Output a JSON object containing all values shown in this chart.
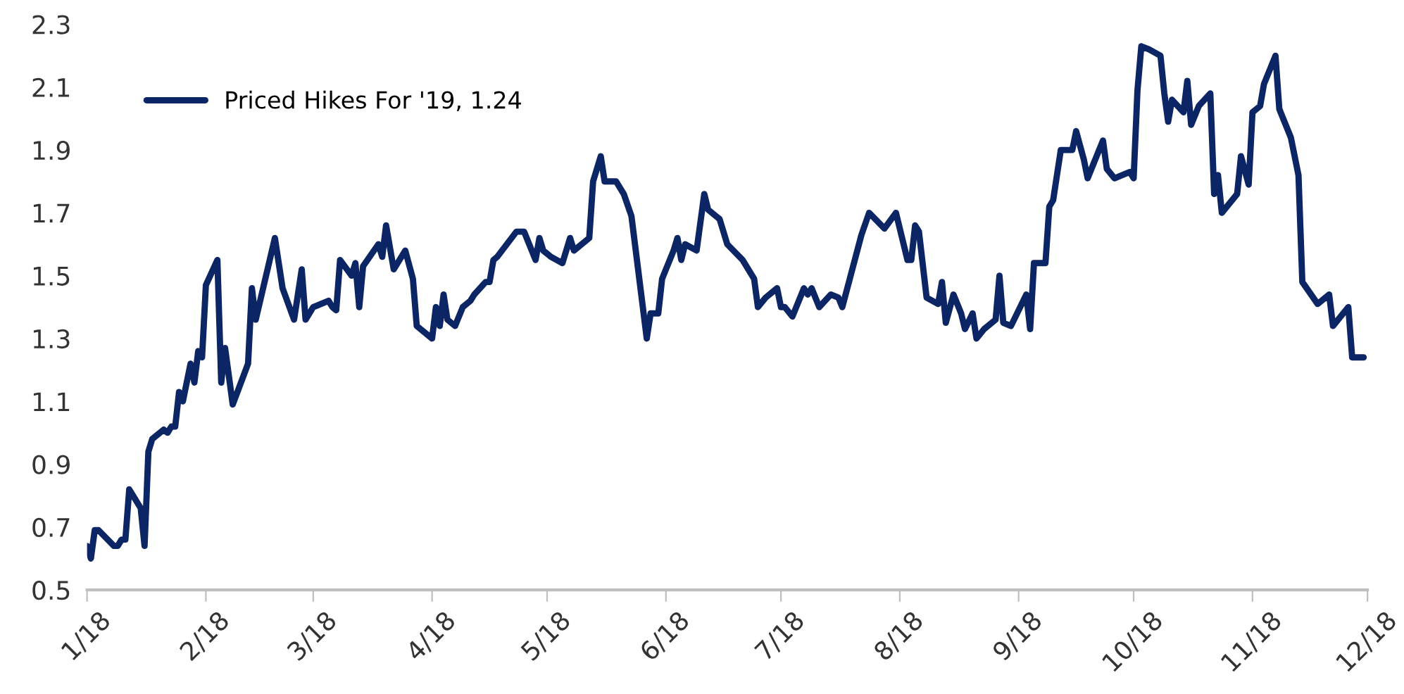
{
  "chart_data": {
    "type": "line",
    "x": [
      "2018-01-01",
      "2018-01-02",
      "2018-01-03",
      "2018-01-04",
      "2018-01-08",
      "2018-01-09",
      "2018-01-10",
      "2018-01-11",
      "2018-01-12",
      "2018-01-15",
      "2018-01-16",
      "2018-01-17",
      "2018-01-18",
      "2018-01-21",
      "2018-01-22",
      "2018-01-23",
      "2018-01-24",
      "2018-01-25",
      "2018-01-26",
      "2018-01-28",
      "2018-01-29",
      "2018-01-30",
      "2018-01-31",
      "2018-02-01",
      "2018-02-04",
      "2018-02-05",
      "2018-02-06",
      "2018-02-08",
      "2018-02-12",
      "2018-02-13",
      "2018-02-14",
      "2018-02-19",
      "2018-02-21",
      "2018-02-24",
      "2018-02-26",
      "2018-02-27",
      "2018-03-01",
      "2018-03-05",
      "2018-03-06",
      "2018-03-07",
      "2018-03-08",
      "2018-03-11",
      "2018-03-12",
      "2018-03-13",
      "2018-03-14",
      "2018-03-18",
      "2018-03-19",
      "2018-03-20",
      "2018-03-22",
      "2018-03-25",
      "2018-03-27",
      "2018-03-28",
      "2018-04-01",
      "2018-04-02",
      "2018-04-03",
      "2018-04-04",
      "2018-04-05",
      "2018-04-07",
      "2018-04-09",
      "2018-04-11",
      "2018-04-12",
      "2018-04-15",
      "2018-04-16",
      "2018-04-17",
      "2018-04-18",
      "2018-04-23",
      "2018-04-25",
      "2018-04-28",
      "2018-04-29",
      "2018-04-30",
      "2018-05-02",
      "2018-05-05",
      "2018-05-07",
      "2018-05-08",
      "2018-05-12",
      "2018-05-13",
      "2018-05-15",
      "2018-05-16",
      "2018-05-19",
      "2018-05-21",
      "2018-05-23",
      "2018-05-27",
      "2018-05-28",
      "2018-05-30",
      "2018-05-31",
      "2018-06-03",
      "2018-06-04",
      "2018-06-05",
      "2018-06-06",
      "2018-06-09",
      "2018-06-11",
      "2018-06-12",
      "2018-06-15",
      "2018-06-17",
      "2018-06-21",
      "2018-06-24",
      "2018-06-25",
      "2018-06-27",
      "2018-06-30",
      "2018-07-01",
      "2018-07-02",
      "2018-07-04",
      "2018-07-07",
      "2018-07-08",
      "2018-07-09",
      "2018-07-11",
      "2018-07-14",
      "2018-07-16",
      "2018-07-17",
      "2018-07-22",
      "2018-07-24",
      "2018-07-28",
      "2018-07-31",
      "2018-08-02",
      "2018-08-03",
      "2018-08-04",
      "2018-08-05",
      "2018-08-06",
      "2018-08-08",
      "2018-08-11",
      "2018-08-12",
      "2018-08-13",
      "2018-08-15",
      "2018-08-17",
      "2018-08-18",
      "2018-08-20",
      "2018-08-21",
      "2018-08-23",
      "2018-08-26",
      "2018-08-27",
      "2018-08-28",
      "2018-08-30",
      "2018-09-03",
      "2018-09-04",
      "2018-09-05",
      "2018-09-08",
      "2018-09-09",
      "2018-09-10",
      "2018-09-12",
      "2018-09-15",
      "2018-09-16",
      "2018-09-18",
      "2018-09-19",
      "2018-09-23",
      "2018-09-24",
      "2018-09-26",
      "2018-09-30",
      "2018-10-01",
      "2018-10-02",
      "2018-10-03",
      "2018-10-05",
      "2018-10-08",
      "2018-10-09",
      "2018-10-10",
      "2018-10-11",
      "2018-10-14",
      "2018-10-15",
      "2018-10-16",
      "2018-10-18",
      "2018-10-21",
      "2018-10-22",
      "2018-10-23",
      "2018-10-24",
      "2018-10-28",
      "2018-10-29",
      "2018-10-31",
      "2018-11-01",
      "2018-11-03",
      "2018-11-04",
      "2018-11-07",
      "2018-11-08",
      "2018-11-11",
      "2018-11-13",
      "2018-11-14",
      "2018-11-18",
      "2018-11-21",
      "2018-11-22",
      "2018-11-26",
      "2018-11-27",
      "2018-11-30"
    ],
    "series": [
      {
        "name": "Priced Hikes For '19, 1.24",
        "color": "#0b2565",
        "values": [
          0.64,
          0.6,
          0.69,
          0.69,
          0.64,
          0.64,
          0.66,
          0.66,
          0.82,
          0.76,
          0.64,
          0.94,
          0.98,
          1.01,
          1.0,
          1.02,
          1.02,
          1.13,
          1.1,
          1.22,
          1.16,
          1.26,
          1.24,
          1.47,
          1.55,
          1.16,
          1.27,
          1.09,
          1.22,
          1.46,
          1.36,
          1.62,
          1.46,
          1.36,
          1.52,
          1.36,
          1.4,
          1.42,
          1.4,
          1.39,
          1.55,
          1.5,
          1.54,
          1.4,
          1.53,
          1.6,
          1.56,
          1.66,
          1.52,
          1.58,
          1.49,
          1.34,
          1.3,
          1.4,
          1.34,
          1.44,
          1.36,
          1.34,
          1.4,
          1.42,
          1.44,
          1.48,
          1.48,
          1.55,
          1.56,
          1.64,
          1.64,
          1.55,
          1.62,
          1.58,
          1.56,
          1.54,
          1.62,
          1.58,
          1.62,
          1.8,
          1.88,
          1.8,
          1.8,
          1.76,
          1.69,
          1.3,
          1.38,
          1.38,
          1.49,
          1.58,
          1.62,
          1.55,
          1.6,
          1.58,
          1.76,
          1.71,
          1.68,
          1.6,
          1.55,
          1.49,
          1.4,
          1.43,
          1.46,
          1.4,
          1.4,
          1.37,
          1.46,
          1.44,
          1.46,
          1.4,
          1.44,
          1.43,
          1.4,
          1.63,
          1.7,
          1.65,
          1.7,
          1.6,
          1.55,
          1.55,
          1.66,
          1.64,
          1.43,
          1.41,
          1.48,
          1.35,
          1.44,
          1.38,
          1.33,
          1.38,
          1.3,
          1.33,
          1.36,
          1.5,
          1.35,
          1.34,
          1.44,
          1.33,
          1.54,
          1.54,
          1.72,
          1.74,
          1.9,
          1.9,
          1.96,
          1.87,
          1.81,
          1.93,
          1.84,
          1.81,
          1.83,
          1.81,
          2.09,
          2.23,
          2.22,
          2.2,
          2.08,
          1.99,
          2.06,
          2.02,
          2.12,
          1.98,
          2.04,
          2.08,
          1.76,
          1.82,
          1.7,
          1.76,
          1.88,
          1.79,
          2.02,
          2.04,
          2.11,
          2.2,
          2.03,
          1.94,
          1.82,
          1.48,
          1.41,
          1.44,
          1.34,
          1.4,
          1.24,
          1.24
        ]
      }
    ],
    "xlim": [
      "2018-01-01",
      "2018-12-01"
    ],
    "xticks": [
      {
        "value": "2018-01-01",
        "label": "1/18"
      },
      {
        "value": "2018-02-01",
        "label": "2/18"
      },
      {
        "value": "2018-03-01",
        "label": "3/18"
      },
      {
        "value": "2018-04-01",
        "label": "4/18"
      },
      {
        "value": "2018-05-01",
        "label": "5/18"
      },
      {
        "value": "2018-06-01",
        "label": "6/18"
      },
      {
        "value": "2018-07-01",
        "label": "7/18"
      },
      {
        "value": "2018-08-01",
        "label": "8/18"
      },
      {
        "value": "2018-09-01",
        "label": "9/18"
      },
      {
        "value": "2018-10-01",
        "label": "10/18"
      },
      {
        "value": "2018-11-01",
        "label": "11/18"
      },
      {
        "value": "2018-12-01",
        "label": "12/18"
      }
    ],
    "ylim": [
      0.5,
      2.3
    ],
    "yticks": [
      0.5,
      0.7,
      0.9,
      1.1,
      1.3,
      1.5,
      1.7,
      1.9,
      2.1,
      2.3
    ],
    "legend": "top left",
    "grid": false,
    "line_style": "solid"
  }
}
